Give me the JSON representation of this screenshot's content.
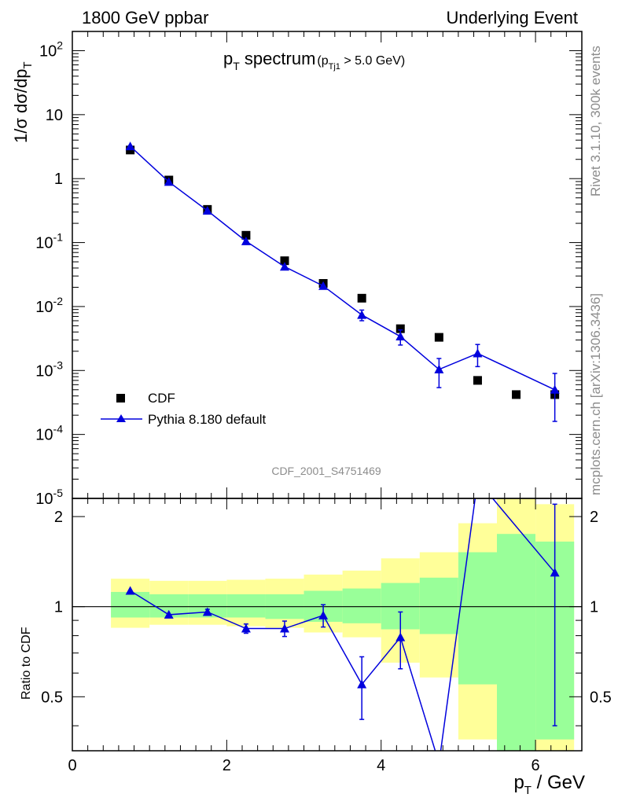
{
  "header": {
    "left": "1800 GeV ppbar",
    "right": "Underlying Event"
  },
  "side": {
    "top": "Rivet 3.1.10,  300k events",
    "bottom": "mcplots.cern.ch [arXiv:1306.3436]"
  },
  "analysis_id": "CDF_2001_S4751469",
  "title": {
    "main_p": "p",
    "main_sub": "T",
    "main_rest": " spectrum",
    "cut_open": "(p",
    "cut_sub": "Tj1",
    "cut_rest": " > 5.0 GeV)"
  },
  "ylabel_top": "1/σ dσ/dp",
  "ylabel_top_sub": "T",
  "ylabel_bottom": "Ratio to CDF",
  "xlabel_p": "p",
  "xlabel_sub": "T",
  "xlabel_rest": " / GeV",
  "legend": {
    "data": "CDF",
    "mc": "Pythia 8.180 default"
  },
  "colors": {
    "mc": "#0000dd",
    "band_inner": "#99ff99",
    "band_outer": "#ffff99",
    "data": "#000000"
  },
  "chart_data": [
    {
      "type": "scatter",
      "panel": "main",
      "xlim": [
        0,
        6.6
      ],
      "ylim": [
        1e-05,
        200
      ],
      "yscale": "log",
      "x_ticks": [
        0,
        2,
        4,
        6
      ],
      "y_tick_labels": [
        "10^{-5}",
        "10^{-4}",
        "10^{-3}",
        "10^{-2}",
        "10^{-1}",
        "1",
        "10",
        "10^{2}"
      ],
      "series": [
        {
          "name": "CDF",
          "x": [
            0.75,
            1.25,
            1.75,
            2.25,
            2.75,
            3.25,
            3.75,
            4.25,
            4.75,
            5.25,
            5.75,
            6.25
          ],
          "y": [
            2.8,
            0.95,
            0.33,
            0.13,
            0.052,
            0.023,
            0.0135,
            0.0045,
            0.0033,
            0.0007,
            0.00042,
            0.00042
          ]
        },
        {
          "name": "Pythia 8.180 default",
          "x": [
            0.75,
            1.25,
            1.75,
            2.25,
            2.75,
            3.25,
            3.75,
            4.25,
            4.75,
            5.25,
            6.25
          ],
          "y": [
            3.2,
            0.89,
            0.315,
            0.105,
            0.042,
            0.021,
            0.0074,
            0.0034,
            0.00104,
            0.00185,
            0.0005
          ],
          "yerr_low": [
            0,
            0,
            0,
            0,
            0,
            0,
            0.0014,
            0.0009,
            0.0005,
            0.0007,
            0.00034
          ],
          "yerr_high": [
            0,
            0,
            0,
            0,
            0,
            0,
            0.0014,
            0.0009,
            0.0005,
            0.0007,
            0.0004
          ]
        }
      ]
    },
    {
      "type": "line",
      "panel": "ratio",
      "ylabel": "Ratio to CDF",
      "xlim": [
        0,
        6.6
      ],
      "ylim": [
        0.33,
        2.3
      ],
      "yscale": "log",
      "y_ticks": [
        0.5,
        1,
        2
      ],
      "bins": [
        [
          0.5,
          1.0
        ],
        [
          1.0,
          1.5
        ],
        [
          1.5,
          2.0
        ],
        [
          2.0,
          2.5
        ],
        [
          2.5,
          3.0
        ],
        [
          3.0,
          3.5
        ],
        [
          3.5,
          4.0
        ],
        [
          4.0,
          4.5
        ],
        [
          4.5,
          5.0
        ],
        [
          5.0,
          5.5
        ],
        [
          5.5,
          6.0
        ],
        [
          6.0,
          6.5
        ]
      ],
      "band_outer": [
        [
          0.85,
          1.24
        ],
        [
          0.87,
          1.22
        ],
        [
          0.87,
          1.22
        ],
        [
          0.86,
          1.23
        ],
        [
          0.85,
          1.24
        ],
        [
          0.82,
          1.28
        ],
        [
          0.79,
          1.32
        ],
        [
          0.65,
          1.45
        ],
        [
          0.58,
          1.52
        ],
        [
          0.36,
          1.9
        ],
        [
          0.3,
          2.4
        ],
        [
          0.3,
          2.2
        ]
      ],
      "band_inner": [
        [
          0.92,
          1.12
        ],
        [
          0.92,
          1.1
        ],
        [
          0.92,
          1.1
        ],
        [
          0.92,
          1.1
        ],
        [
          0.91,
          1.1
        ],
        [
          0.89,
          1.13
        ],
        [
          0.88,
          1.15
        ],
        [
          0.84,
          1.2
        ],
        [
          0.81,
          1.25
        ],
        [
          0.55,
          1.52
        ],
        [
          0.3,
          1.75
        ],
        [
          0.36,
          1.65
        ]
      ],
      "series": [
        {
          "name": "Pythia 8.180 default",
          "x": [
            0.75,
            1.25,
            1.75,
            2.25,
            2.75,
            3.25,
            3.75,
            4.25,
            4.75,
            5.25,
            6.25
          ],
          "y": [
            1.13,
            0.94,
            0.96,
            0.845,
            0.845,
            0.935,
            0.55,
            0.79,
            0.3,
            2.64,
            1.3
          ],
          "yerr": [
            0,
            0,
            0.02,
            0.03,
            0.05,
            0.08,
            0.13,
            0.17,
            0,
            0,
            0.9
          ]
        }
      ]
    }
  ]
}
